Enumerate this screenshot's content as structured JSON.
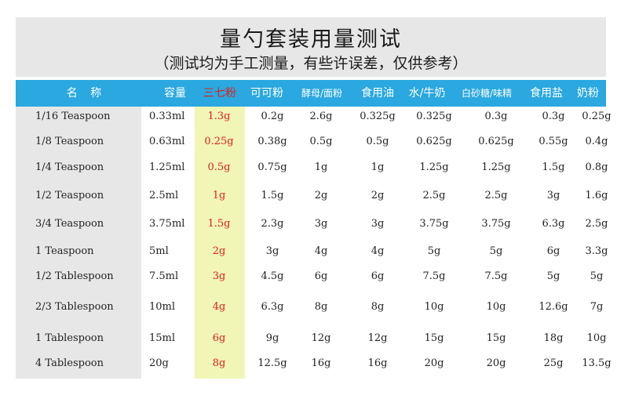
{
  "title": "量勺套装用量测试",
  "subtitle": "（测试均为手工测量，有些许误差，仅供参考）",
  "columns": [
    "名 称",
    "容量",
    "三七粉",
    "可可粉",
    "酵母/面粉",
    "食用油",
    "水/牛奶",
    "白砂糖/味精",
    "食用盐",
    "奶粉"
  ],
  "rows": [
    [
      "1/16 Teaspoon",
      "0.33ml",
      "1.3g",
      "0.2g",
      "2.6g",
      "0.325g",
      "0.325g",
      "0.3g",
      "0.3g",
      "0.25g"
    ],
    [
      "1/8 Teaspoon",
      "0.63ml",
      "0.25g",
      "0.38g",
      "0.5g",
      "0.5g",
      "0.625g",
      "0.625g",
      "0.55g",
      "0.4g"
    ],
    [
      "1/4 Teaspoon",
      "1.25ml",
      "0.5g",
      "0.75g",
      "1g",
      "1g",
      "1.25g",
      "1.25g",
      "1.5g",
      "0.8g"
    ],
    [
      "1/2 Teaspoon",
      "2.5ml",
      "1g",
      "1.5g",
      "2g",
      "2g",
      "2.5g",
      "2.5g",
      "3g",
      "1.6g"
    ],
    [
      "3/4 Teaspoon",
      "3.75ml",
      "1.5g",
      "2.3g",
      "3g",
      "3g",
      "3.75g",
      "3.75g",
      "6.3g",
      "2.5g"
    ],
    [
      "1 Teaspoon",
      "5ml",
      "2g",
      "3g",
      "4g",
      "4g",
      "5g",
      "5g",
      "6g",
      "3.3g"
    ],
    [
      "1/2 Tablespoon",
      "7.5ml",
      "3g",
      "4.5g",
      "6g",
      "6g",
      "7.5g",
      "7.5g",
      "5g",
      "5g"
    ],
    [
      "2/3 Tablespoon",
      "10ml",
      "4g",
      "6.3g",
      "8g",
      "8g",
      "10g",
      "10g",
      "12.6g",
      "7g"
    ],
    [
      "1 Tablespoon",
      "15ml",
      "6g",
      "9g",
      "12g",
      "12g",
      "15g",
      "15g",
      "18g",
      "10g"
    ],
    [
      "4 Tablespoon",
      "20g",
      "8g",
      "12.5g",
      "16g",
      "16g",
      "20g",
      "20g",
      "25g",
      "13.5g"
    ]
  ],
  "colors": {
    "header": "#2aa8df",
    "highlight_column": "#f1f6b6",
    "highlight_text": "#e0201b",
    "band": "#e7e7e7"
  }
}
